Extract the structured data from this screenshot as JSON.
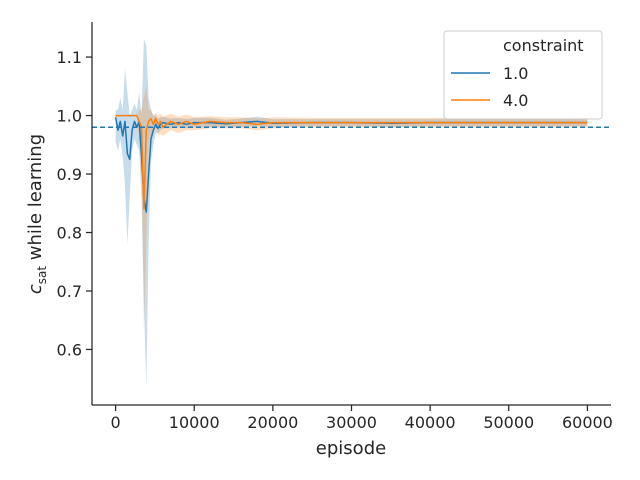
{
  "chart_data": {
    "type": "line",
    "title": "",
    "xlabel": "episode",
    "ylabel": {
      "main": "c",
      "subscript": "sat",
      "suffix": " while learning"
    },
    "xlim": [
      -3000,
      63000
    ],
    "ylim": [
      0.505,
      1.16
    ],
    "xticks": [
      0,
      10000,
      20000,
      30000,
      40000,
      50000,
      60000
    ],
    "xtick_labels": [
      "0",
      "10000",
      "20000",
      "30000",
      "40000",
      "50000",
      "60000"
    ],
    "yticks": [
      0.6,
      0.7,
      0.8,
      0.9,
      1.0,
      1.1
    ],
    "ytick_labels": [
      "0.6",
      "0.7",
      "0.8",
      "0.9",
      "1.0",
      "1.1"
    ],
    "grid": false,
    "legend": {
      "title": "constraint",
      "placement": "top-right",
      "entries": [
        "1.0",
        "4.0"
      ]
    },
    "reference_line": {
      "y": 0.98,
      "style": "dashed",
      "color": "#1f77b4"
    },
    "series": [
      {
        "name": "1.0",
        "color": "#1f77b4",
        "x": [
          0,
          300,
          600,
          900,
          1200,
          1500,
          1800,
          2100,
          2400,
          2700,
          3000,
          3300,
          3600,
          3900,
          4200,
          4500,
          4800,
          5100,
          5400,
          5700,
          6000,
          7000,
          8000,
          9000,
          10000,
          12000,
          14000,
          16000,
          18000,
          20000,
          25000,
          30000,
          35000,
          40000,
          45000,
          50000,
          55000,
          60000
        ],
        "y": [
          0.997,
          0.975,
          0.99,
          0.965,
          0.99,
          0.935,
          0.925,
          0.975,
          0.99,
          0.98,
          0.99,
          0.93,
          0.86,
          0.835,
          0.9,
          0.96,
          0.975,
          0.985,
          0.978,
          0.985,
          0.988,
          0.985,
          0.988,
          0.985,
          0.988,
          0.988,
          0.986,
          0.988,
          0.99,
          0.987,
          0.988,
          0.988,
          0.987,
          0.988,
          0.988,
          0.988,
          0.988,
          0.988
        ],
        "lower": [
          0.955,
          0.94,
          0.96,
          0.93,
          0.88,
          0.78,
          0.86,
          0.94,
          0.96,
          0.95,
          0.94,
          0.86,
          0.68,
          0.535,
          0.78,
          0.92,
          0.95,
          0.97,
          0.97,
          0.975,
          0.978,
          0.978,
          0.98,
          0.978,
          0.98,
          0.98,
          0.98,
          0.98,
          0.982,
          0.98,
          0.982,
          0.982,
          0.98,
          0.982,
          0.982,
          0.982,
          0.982,
          0.982
        ],
        "upper": [
          1.01,
          1.01,
          1.03,
          1.01,
          1.08,
          1.04,
          1.0,
          1.01,
          1.02,
          1.01,
          1.04,
          1.0,
          1.13,
          1.12,
          1.03,
          1.01,
          1.0,
          1.0,
          0.995,
          0.997,
          0.998,
          0.995,
          0.996,
          0.994,
          0.996,
          0.996,
          0.993,
          0.995,
          0.998,
          0.994,
          0.994,
          0.994,
          0.994,
          0.994,
          0.994,
          0.994,
          0.994,
          0.994
        ]
      },
      {
        "name": "4.0",
        "color": "#ff7f0e",
        "x": [
          0,
          300,
          600,
          900,
          1200,
          1500,
          1800,
          2100,
          2400,
          2700,
          3000,
          3300,
          3600,
          3900,
          4200,
          4500,
          4800,
          5100,
          5400,
          5700,
          6000,
          7000,
          8000,
          9000,
          10000,
          12000,
          14000,
          16000,
          18000,
          20000,
          25000,
          30000,
          35000,
          40000,
          45000,
          50000,
          55000,
          60000
        ],
        "y": [
          1.0,
          1.0,
          1.0,
          1.0,
          1.0,
          1.0,
          1.0,
          1.0,
          1.0,
          1.0,
          0.99,
          0.98,
          0.84,
          0.975,
          0.99,
          0.995,
          0.985,
          0.995,
          0.985,
          0.99,
          0.98,
          0.99,
          0.985,
          0.99,
          0.985,
          0.99,
          0.988,
          0.988,
          0.985,
          0.988,
          0.988,
          0.988,
          0.988,
          0.988,
          0.988,
          0.988,
          0.988,
          0.988
        ],
        "lower": [
          0.999,
          0.999,
          0.999,
          0.999,
          0.999,
          0.999,
          0.999,
          0.999,
          0.999,
          0.999,
          0.96,
          0.93,
          0.63,
          0.78,
          0.95,
          0.97,
          0.97,
          0.98,
          0.965,
          0.97,
          0.965,
          0.975,
          0.97,
          0.975,
          0.975,
          0.978,
          0.978,
          0.978,
          0.975,
          0.978,
          0.98,
          0.98,
          0.98,
          0.98,
          0.98,
          0.98,
          0.98,
          0.98
        ],
        "upper": [
          1.001,
          1.001,
          1.001,
          1.001,
          1.001,
          1.001,
          1.001,
          1.001,
          1.001,
          1.001,
          1.01,
          1.01,
          1.03,
          1.05,
          1.01,
          1.01,
          1.0,
          1.005,
          1.0,
          1.003,
          0.998,
          1.003,
          0.998,
          1.002,
          0.997,
          0.999,
          0.997,
          0.997,
          0.995,
          0.997,
          0.996,
          0.996,
          0.996,
          0.996,
          0.996,
          0.996,
          0.996,
          0.996
        ]
      }
    ]
  }
}
